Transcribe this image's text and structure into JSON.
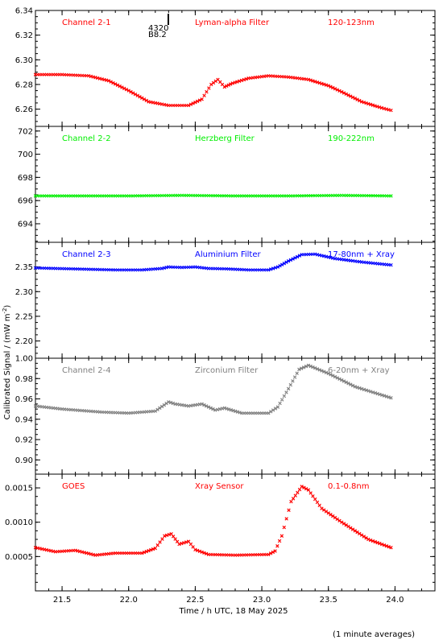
{
  "figure": {
    "ylabel": "Calibrated Signal / (mW m",
    "ylabel_sup": "-2",
    "ylabel_end": ")",
    "xlabel": "Time / h UTC, 18 May 2025",
    "footer": "(1 minute averages)",
    "marker_label_1": "4320",
    "marker_label_2": "B8.2"
  },
  "chart_data": [
    {
      "type": "scatter",
      "channel": "Channel 2-1",
      "filter": "Lyman-alpha Filter",
      "band": "120-123nm",
      "color": "#ff0000",
      "marker": "x",
      "xlim": [
        21.3,
        24.3
      ],
      "ylim": [
        6.246,
        6.34
      ],
      "yticks": [
        6.26,
        6.28,
        6.3,
        6.32,
        6.34
      ],
      "yticklabels": [
        "6.26",
        "6.28",
        "6.30",
        "6.32",
        "6.34"
      ],
      "x": [
        21.3,
        21.5,
        21.7,
        21.85,
        22.0,
        22.15,
        22.3,
        22.45,
        22.55,
        22.62,
        22.67,
        22.72,
        22.78,
        22.9,
        23.05,
        23.2,
        23.35,
        23.5,
        23.6,
        23.75,
        23.9,
        23.97
      ],
      "y": [
        6.288,
        6.288,
        6.287,
        6.283,
        6.275,
        6.266,
        6.263,
        6.263,
        6.268,
        6.28,
        6.284,
        6.278,
        6.281,
        6.285,
        6.287,
        6.286,
        6.284,
        6.279,
        6.274,
        6.266,
        6.261,
        6.259
      ]
    },
    {
      "type": "scatter",
      "channel": "Channel 2-2",
      "filter": "Herzberg Filter",
      "band": "190-222nm",
      "color": "#00ee00",
      "marker": "x",
      "xlim": [
        21.3,
        24.3
      ],
      "ylim": [
        692.4,
        702.4
      ],
      "yticks": [
        694,
        696,
        698,
        700,
        702
      ],
      "yticklabels": [
        "694",
        "696",
        "698",
        "700",
        "702"
      ],
      "x": [
        21.3,
        21.6,
        22.0,
        22.4,
        22.8,
        23.2,
        23.6,
        23.97
      ],
      "y": [
        696.4,
        696.4,
        696.4,
        696.45,
        696.4,
        696.4,
        696.45,
        696.4
      ]
    },
    {
      "type": "scatter",
      "channel": "Channel 2-3",
      "filter": "Aluminium Filter",
      "band": "17-80nm + Xray",
      "color": "#0000ff",
      "marker": "x",
      "xlim": [
        21.3,
        24.3
      ],
      "ylim": [
        2.165,
        2.4
      ],
      "yticks": [
        2.2,
        2.25,
        2.3,
        2.35
      ],
      "yticklabels": [
        "2.20",
        "2.25",
        "2.30",
        "2.35"
      ],
      "x": [
        21.3,
        21.6,
        21.9,
        22.1,
        22.25,
        22.3,
        22.4,
        22.5,
        22.6,
        22.75,
        22.9,
        23.05,
        23.12,
        23.2,
        23.3,
        23.4,
        23.55,
        23.75,
        23.97
      ],
      "y": [
        2.348,
        2.346,
        2.344,
        2.344,
        2.347,
        2.35,
        2.349,
        2.35,
        2.347,
        2.346,
        2.344,
        2.344,
        2.35,
        2.362,
        2.375,
        2.376,
        2.367,
        2.36,
        2.354
      ]
    },
    {
      "type": "scatter",
      "channel": "Channel 2-4",
      "filter": "Zirconium Filter",
      "band": "6-20nm + Xray",
      "color": "#808080",
      "marker": "x",
      "xlim": [
        21.3,
        24.3
      ],
      "ylim": [
        0.886,
        1.0
      ],
      "yticks": [
        0.9,
        0.92,
        0.94,
        0.96,
        0.98,
        1.0
      ],
      "yticklabels": [
        "0.90",
        "0.92",
        "0.94",
        "0.96",
        "0.98",
        "1.00"
      ],
      "x": [
        21.3,
        21.5,
        21.8,
        22.0,
        22.2,
        22.3,
        22.35,
        22.45,
        22.55,
        22.65,
        22.72,
        22.85,
        23.05,
        23.12,
        23.2,
        23.28,
        23.35,
        23.5,
        23.7,
        23.97
      ],
      "y": [
        0.953,
        0.95,
        0.947,
        0.946,
        0.948,
        0.957,
        0.955,
        0.953,
        0.955,
        0.949,
        0.951,
        0.946,
        0.946,
        0.952,
        0.97,
        0.989,
        0.993,
        0.985,
        0.972,
        0.961
      ]
    },
    {
      "type": "scatter",
      "channel": "GOES",
      "filter": "Xray Sensor",
      "band": "0.1-0.8nm",
      "color": "#ff0000",
      "marker": "x",
      "xlim": [
        21.3,
        24.3
      ],
      "ylim": [
        0.0,
        0.0017
      ],
      "yticks": [
        0.0005,
        0.001,
        0.0015
      ],
      "yticklabels": [
        "0.0005",
        "0.0010",
        "0.0015"
      ],
      "x": [
        21.3,
        21.45,
        21.6,
        21.75,
        21.9,
        22.1,
        22.2,
        22.27,
        22.32,
        22.38,
        22.45,
        22.5,
        22.6,
        22.8,
        23.05,
        23.1,
        23.15,
        23.22,
        23.3,
        23.35,
        23.45,
        23.6,
        23.8,
        23.97
      ],
      "y": [
        0.00063,
        0.00057,
        0.00059,
        0.00052,
        0.00055,
        0.00055,
        0.00062,
        0.0008,
        0.00083,
        0.00068,
        0.00072,
        0.0006,
        0.00053,
        0.00052,
        0.00053,
        0.00058,
        0.0008,
        0.0013,
        0.00152,
        0.00147,
        0.0012,
        0.001,
        0.00075,
        0.00063
      ]
    }
  ]
}
